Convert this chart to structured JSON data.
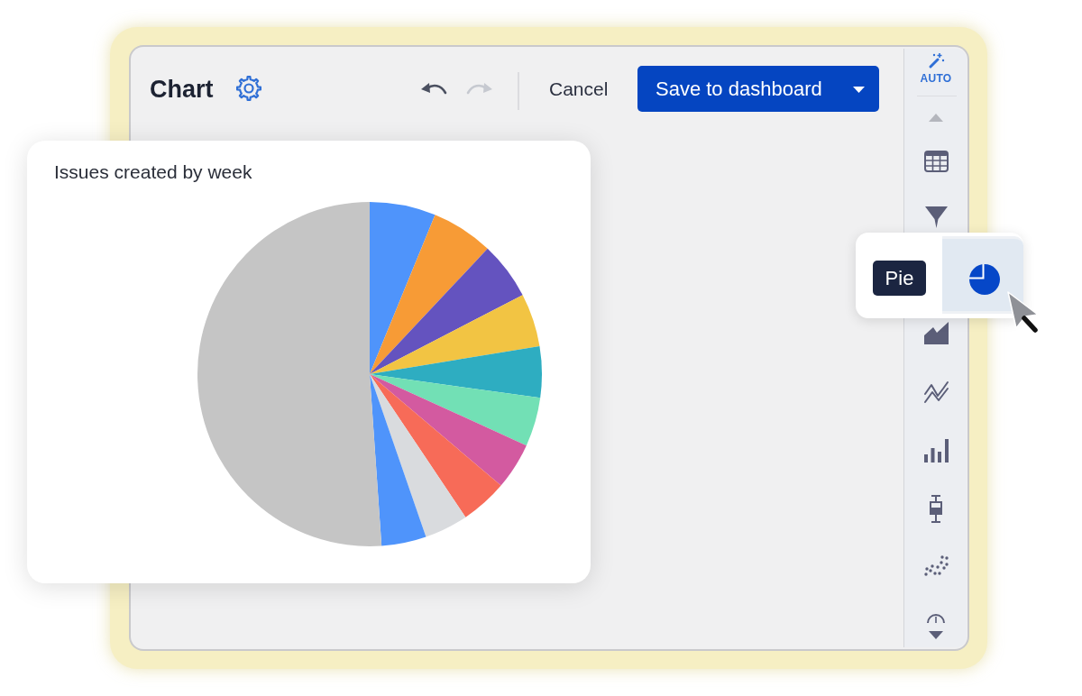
{
  "chart_data": [
    {
      "type": "other",
      "title": "Chart",
      "annotations": [
        "Cancel",
        "Save to dashboard",
        "AUTO",
        "Pie"
      ]
    },
    {
      "type": "pie",
      "title": "Issues created by week",
      "categories": [
        null,
        null,
        null,
        null,
        null,
        null,
        null,
        null,
        null,
        null,
        null
      ],
      "values": [
        6.2,
        5.8,
        5.4,
        5,
        4.8,
        4.6,
        4.4,
        4.4,
        4.1,
        4.2,
        51.1
      ],
      "colors": [
        "#4f94fb",
        "#f79b36",
        "#6453bf",
        "#f2c443",
        "#2eadc1",
        "#72e0b5",
        "#d35aa0",
        "#f76b58",
        "#d9dbde",
        "#4f94fb",
        "#c5c5c5"
      ]
    }
  ]
}
